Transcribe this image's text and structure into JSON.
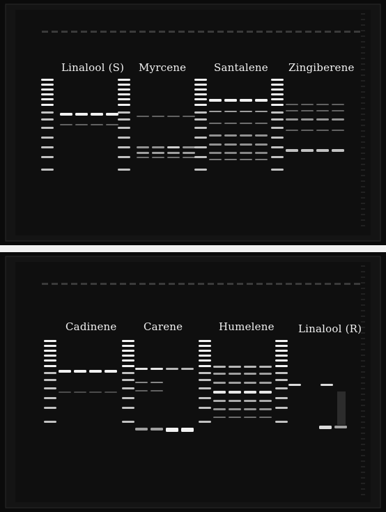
{
  "gels": [
    {
      "id": "gel-top",
      "labels": [
        "Linalool (S)",
        "Myrcene",
        "Santalene",
        "Zingiberene"
      ]
    },
    {
      "id": "gel-bottom",
      "labels": [
        "Cadinene",
        "Carene",
        "Humelene",
        "Linalool (R)"
      ]
    }
  ],
  "colors": {
    "gel_background": "#0b0b0b",
    "band": "#ffffff",
    "divider": "#f2f2f2"
  }
}
